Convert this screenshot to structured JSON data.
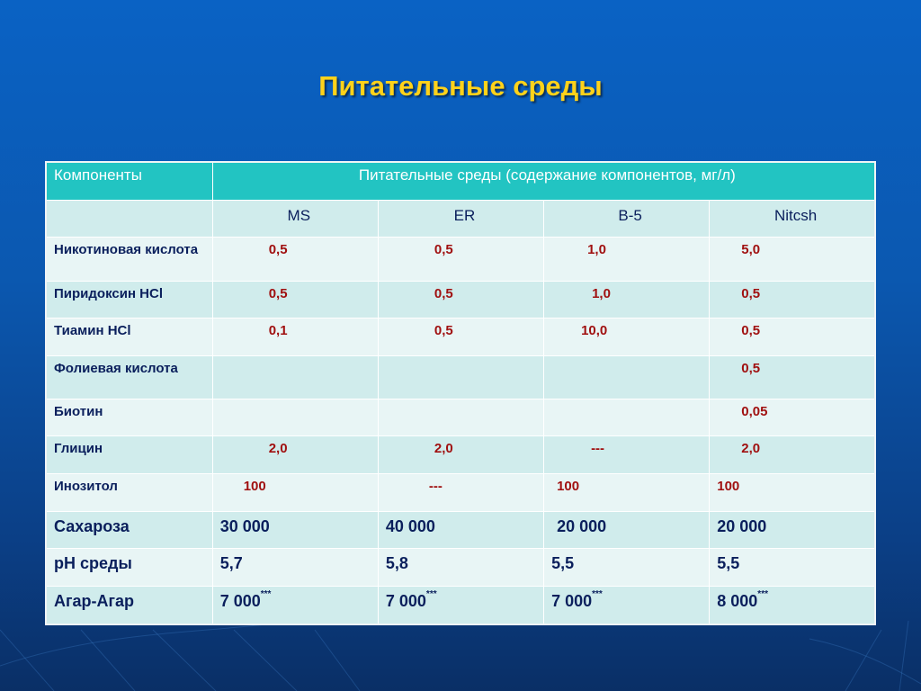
{
  "title": "Питательные среды",
  "table": {
    "header": {
      "components": "Компоненты",
      "media_caption": "Питательные среды (содержание компонентов, мг/л)"
    },
    "media": [
      "MS",
      "ER",
      "B-5",
      "Nitcsh"
    ],
    "rows": [
      {
        "name": "Никотиновая кислота",
        "values": [
          "0,5",
          "0,5",
          "1,0",
          "5,0"
        ]
      },
      {
        "name": "Пиридоксин HCl",
        "values": [
          "0,5",
          "0,5",
          "1,0",
          "0,5"
        ]
      },
      {
        "name": "Тиамин HCl",
        "values": [
          "0,1",
          "0,5",
          "10,0",
          "0,5"
        ]
      },
      {
        "name": "Фолиевая кислота",
        "values": [
          "",
          "",
          "",
          "0,5"
        ]
      },
      {
        "name": "Биотин",
        "values": [
          "",
          "",
          "",
          "0,05"
        ]
      },
      {
        "name": "Глицин",
        "values": [
          "2,0",
          "2,0",
          "---",
          "2,0"
        ]
      },
      {
        "name": "Инозитол",
        "values": [
          "100",
          "---",
          "100",
          "100"
        ]
      },
      {
        "name": "Сахароза",
        "values": [
          "30 000",
          "40 000",
          "20 000",
          "20 000"
        ]
      },
      {
        "name": "pH среды",
        "values": [
          "5,7",
          "5,8",
          "5,5",
          "5,5"
        ]
      },
      {
        "name": "Агар-Агар",
        "values": [
          "7 000",
          "7 000",
          "7 000",
          "8 000"
        ],
        "note": "***"
      }
    ]
  },
  "colors": {
    "title": "#ffd21a",
    "header_bg": "#22c4c2",
    "row_light": "#e8f5f5",
    "row_dark": "#d0ecec",
    "component_value": "#a01010",
    "dark_text": "#0a1f5c"
  }
}
